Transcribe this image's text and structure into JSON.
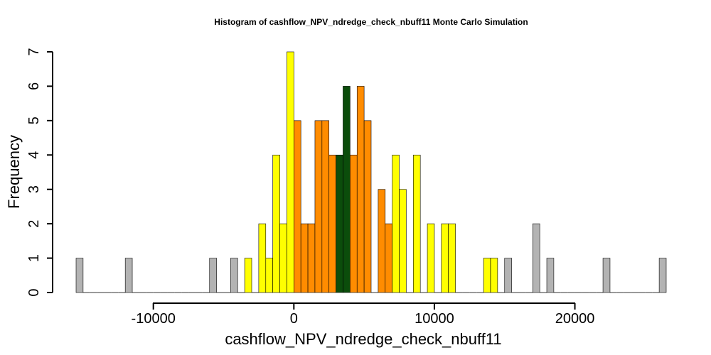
{
  "chart_data": {
    "type": "bar",
    "title": "Histogram of  cashflow_NPV_ndredge_check_nbuff11  Monte Carlo Simulation",
    "xlabel": "cashflow_NPV_ndredge_check_nbuff11",
    "ylabel": "Frequency",
    "xlim": [
      -15500,
      26500
    ],
    "ylim": [
      0,
      7
    ],
    "bin_width": 500,
    "x_ticks": [
      -10000,
      0,
      10000,
      20000
    ],
    "x_tick_labels": [
      "-10000",
      "0",
      "10000",
      "20000"
    ],
    "y_ticks": [
      0,
      1,
      2,
      3,
      4,
      5,
      6,
      7
    ],
    "y_tick_labels": [
      "0",
      "1",
      "2",
      "3",
      "4",
      "5",
      "6",
      "7"
    ],
    "colors": {
      "gray": "#b3b3b3",
      "yellow": "#ffff00",
      "orange": "#ff8c00",
      "green": "#0b4d0b"
    },
    "bars": [
      {
        "x0": -15500,
        "count": 1,
        "color": "gray"
      },
      {
        "x0": -12000,
        "count": 1,
        "color": "gray"
      },
      {
        "x0": -6000,
        "count": 1,
        "color": "gray"
      },
      {
        "x0": -4500,
        "count": 1,
        "color": "gray"
      },
      {
        "x0": -3500,
        "count": 1,
        "color": "yellow"
      },
      {
        "x0": -2500,
        "count": 2,
        "color": "yellow"
      },
      {
        "x0": -2000,
        "count": 1,
        "color": "yellow"
      },
      {
        "x0": -1500,
        "count": 4,
        "color": "yellow"
      },
      {
        "x0": -1000,
        "count": 2,
        "color": "yellow"
      },
      {
        "x0": -500,
        "count": 7,
        "color": "yellow"
      },
      {
        "x0": 0,
        "count": 5,
        "color": "orange"
      },
      {
        "x0": 500,
        "count": 2,
        "color": "orange"
      },
      {
        "x0": 1000,
        "count": 2,
        "color": "orange"
      },
      {
        "x0": 1500,
        "count": 5,
        "color": "orange"
      },
      {
        "x0": 2000,
        "count": 5,
        "color": "orange"
      },
      {
        "x0": 2500,
        "count": 4,
        "color": "orange"
      },
      {
        "x0": 3000,
        "count": 4,
        "color": "green"
      },
      {
        "x0": 3500,
        "count": 6,
        "color": "green"
      },
      {
        "x0": 4000,
        "count": 4,
        "color": "orange"
      },
      {
        "x0": 4500,
        "count": 6,
        "color": "orange"
      },
      {
        "x0": 5000,
        "count": 5,
        "color": "orange"
      },
      {
        "x0": 6000,
        "count": 3,
        "color": "orange"
      },
      {
        "x0": 6500,
        "count": 2,
        "color": "orange"
      },
      {
        "x0": 7000,
        "count": 4,
        "color": "yellow"
      },
      {
        "x0": 7500,
        "count": 3,
        "color": "yellow"
      },
      {
        "x0": 8500,
        "count": 4,
        "color": "yellow"
      },
      {
        "x0": 9500,
        "count": 2,
        "color": "yellow"
      },
      {
        "x0": 10500,
        "count": 2,
        "color": "yellow"
      },
      {
        "x0": 11000,
        "count": 2,
        "color": "yellow"
      },
      {
        "x0": 13500,
        "count": 1,
        "color": "yellow"
      },
      {
        "x0": 14000,
        "count": 1,
        "color": "yellow"
      },
      {
        "x0": 15000,
        "count": 1,
        "color": "gray"
      },
      {
        "x0": 17000,
        "count": 2,
        "color": "gray"
      },
      {
        "x0": 18000,
        "count": 1,
        "color": "gray"
      },
      {
        "x0": 22000,
        "count": 1,
        "color": "gray"
      },
      {
        "x0": 26000,
        "count": 1,
        "color": "gray"
      }
    ]
  }
}
